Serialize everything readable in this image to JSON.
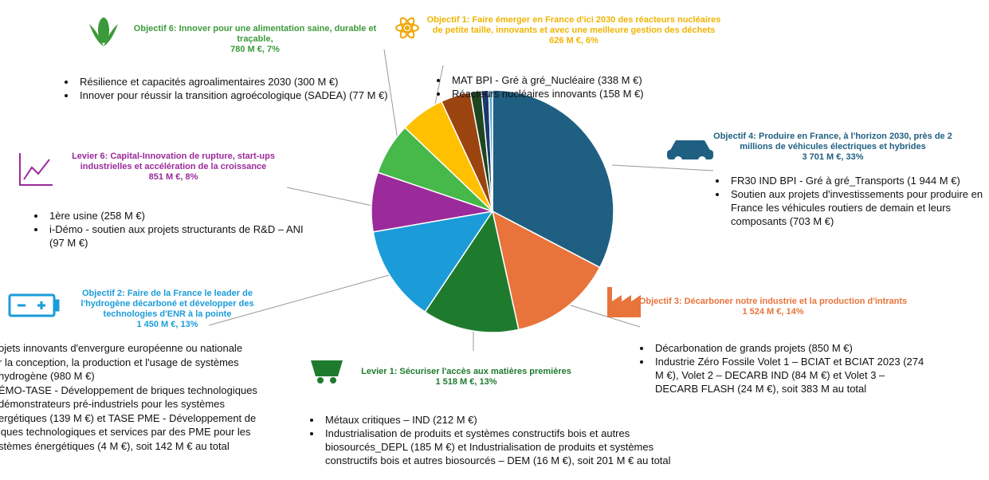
{
  "chart_data": {
    "type": "pie",
    "values": [
      33,
      14,
      13,
      13,
      8,
      7,
      6,
      4,
      1.5,
      1,
      0.5
    ],
    "colors": [
      "#1f5f82",
      "#e8743b",
      "#1e7b2e",
      "#1b9cd8",
      "#9b2a9b",
      "#47b84a",
      "#ffc000",
      "#9c4410",
      "#1e4620",
      "#1a3a6c",
      "#5fa8d3"
    ]
  },
  "blocks": [
    {
      "title": "Objectif 6: Innover pour une alimentation saine, durable et traçable,",
      "amount": "780 M €, 7%",
      "bullets": [
        "Résilience et capacités agroalimentaires 2030 (300 M €)",
        "Innover pour réussir la transition agroécologique (SADEA) (77 M €)"
      ]
    },
    {
      "title": "Objectif 1: Faire émerger en France d'ici 2030 des réacteurs nucléaires de petite taille, innovants et avec une meilleure gestion des déchets",
      "amount": "626 M €, 6%",
      "bullets": [
        "MAT BPI - Gré à  gré_Nucléaire (338 M €)",
        "Réacteurs nucléaires innovants (158 M €)"
      ]
    },
    {
      "title": "Objectif 4: Produire en France, à  l'horizon 2030, près de 2 millions de véhicules électriques et hybrides",
      "amount": "3 701 M €, 33%",
      "bullets": [
        "FR30 IND BPI - Gré à  gré_Transports (1 944 M €)",
        "Soutien aux projets d'investissements pour produire en France les véhicules routiers de demain et leurs composants (703 M €)"
      ]
    },
    {
      "title": "Levier 6: Capital-Innovation de rupture, start-ups industrielles et accélération de la croissance",
      "amount": "851 M €, 8%",
      "bullets": [
        "1ère usine (258 M €)",
        "i-Démo - soutien aux projets structurants de R&D – ANI (97 M €)"
      ]
    },
    {
      "title": "Objectif 2: Faire de la France le leader de l'hydrogène décarboné et développer des technologies d'ENR à  la pointe",
      "amount": "1 450 M €, 13%",
      "lines": [
        "ojets innovants d'envergure européenne ou nationale",
        "r la conception, la production et l'usage de systèmes",
        "hydrogène (980 M €)",
        "ÉMO-TASE - Développement de briques technologiques",
        "démonstrateurs pré-industriels pour les systèmes",
        "ergétiques (139 M €) et TASE PME - Développement de",
        "iques technologiques et services par des PME pour les",
        "stèmes énergétiques (4 M €), soit 142 M € au total"
      ]
    },
    {
      "title": "Objectif 3: Décarboner notre industrie et la production d'intrants",
      "amount": "1 524 M €, 14%",
      "bullets": [
        "Décarbonation de grands projets (850 M €)",
        "Industrie Zéro Fossile Volet 1 – BCIAT et BCIAT 2023 (274 M €), Volet 2 – DECARB IND (84 M €) et Volet 3 – DECARB FLASH (24 M €), soit 383 M au total"
      ]
    },
    {
      "title": "Levier 1: Sécuriser l'accès aux matières premières",
      "amount": "1 518 M €, 13%",
      "bullets": [
        "Métaux critiques – IND (212 M €)",
        "Industrialisation de produits et systèmes constructifs bois et autres biosourcés_DEPL (185 M €) et Industrialisation de produits et systèmes constructifs bois et autres biosourcés – DEM (16 M €), soit 201 M € au total"
      ]
    }
  ]
}
